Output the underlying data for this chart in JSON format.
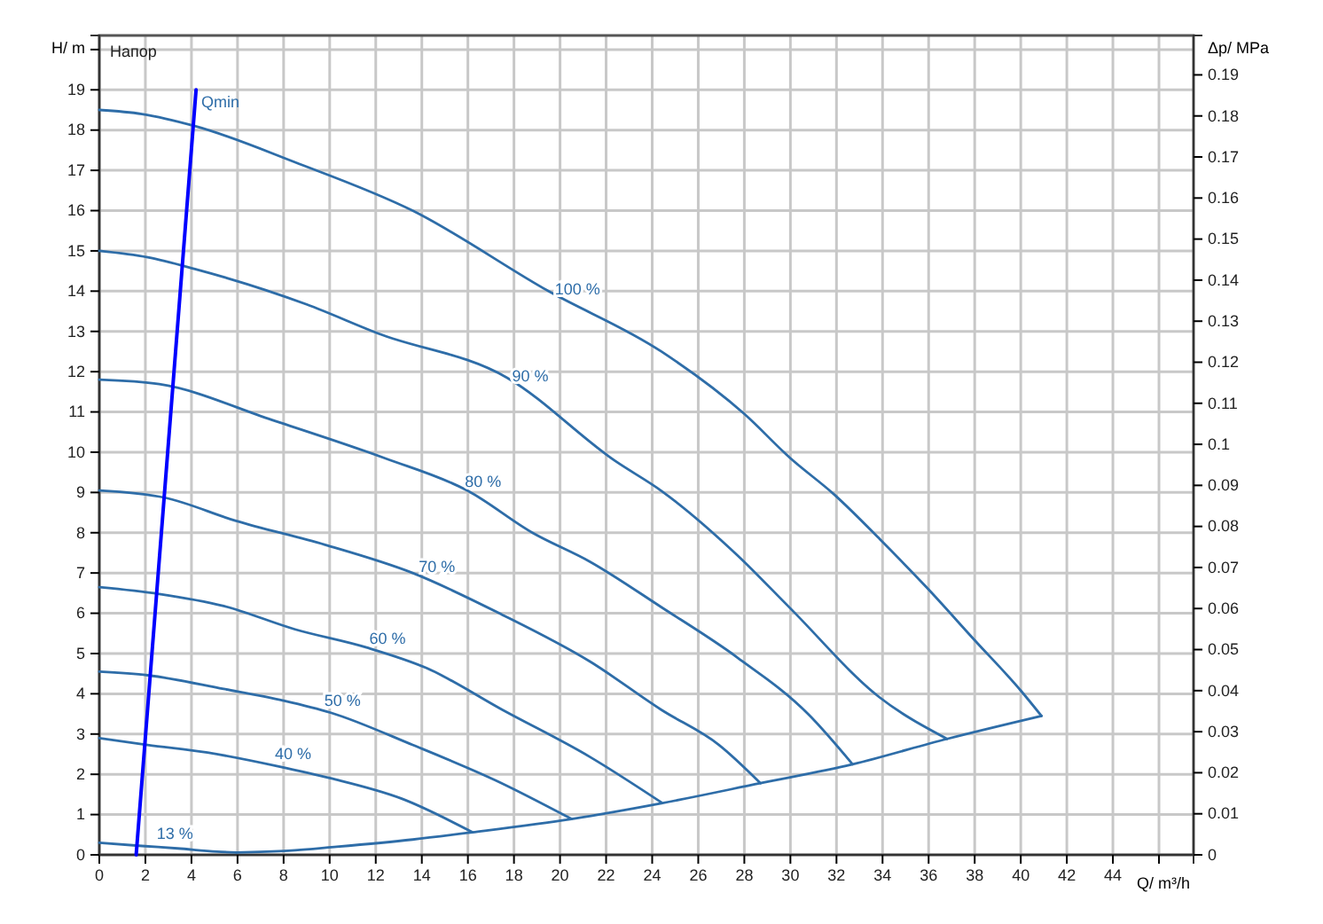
{
  "chart_data": {
    "type": "line",
    "title": "Напор",
    "xlabel": "Q/ m³/h",
    "ylabel": "H/ m",
    "y2label": "Δp/ MPa",
    "xlim": [
      0,
      47.5
    ],
    "ylim": [
      0,
      20.35
    ],
    "y2lim": [
      0,
      0.1996
    ],
    "xticks": [
      0,
      2,
      4,
      6,
      8,
      10,
      12,
      14,
      16,
      18,
      20,
      22,
      24,
      26,
      28,
      30,
      32,
      34,
      36,
      38,
      40,
      42,
      44,
      {
        "value": 46,
        "label": null
      }
    ],
    "yticks": [
      0,
      1,
      2,
      3,
      4,
      5,
      6,
      7,
      8,
      9,
      10,
      11,
      12,
      13,
      14,
      15,
      16,
      17,
      18,
      19,
      {
        "value": 20,
        "label": null
      }
    ],
    "y2ticks": [
      0,
      0.01,
      0.02,
      0.03,
      0.04,
      0.05,
      0.06,
      0.07,
      0.08,
      0.09,
      0.1,
      0.11,
      0.12,
      0.13,
      0.14,
      0.15,
      0.16,
      0.17,
      0.18,
      0.19
    ],
    "grid": true,
    "marker": "none",
    "line_style": "solid",
    "series": [
      {
        "name": "100 %",
        "color": "#2e6da8",
        "x": [
          0,
          1.85,
          4.15,
          8.5,
          13.6,
          19.5,
          24.4,
          28,
          30,
          31.9,
          33.9,
          35.9,
          38,
          40,
          40.9
        ],
        "values": [
          18.5,
          18.4,
          18.1,
          17.2,
          16.0,
          14.0,
          12.5,
          10.95,
          9.85,
          8.95,
          7.83,
          6.65,
          5.33,
          4.08,
          3.45
        ]
      },
      {
        "name": "90 %",
        "color": "#2e6da8",
        "x": [
          0,
          2.1,
          4.15,
          9,
          12.1,
          17.7,
          22.4,
          24.4,
          27.7,
          30,
          33.85,
          36.8
        ],
        "values": [
          15.0,
          14.84,
          14.55,
          13.67,
          12.95,
          11.85,
          9.78,
          9.04,
          7.44,
          6.12,
          3.92,
          2.88
        ]
      },
      {
        "name": "80 %",
        "color": "#2e6da8",
        "x": [
          0,
          2.6,
          7.5,
          12.4,
          16,
          18.8,
          21.3,
          24.4,
          27.7,
          30.8,
          32.7
        ],
        "values": [
          11.8,
          11.69,
          10.8,
          9.85,
          9.04,
          8.0,
          7.28,
          6.15,
          4.9,
          3.48,
          2.25
        ]
      },
      {
        "name": "70 %",
        "color": "#2e6da8",
        "x": [
          0,
          2.85,
          5.9,
          9.8,
          13.6,
          17.5,
          21.3,
          24.4,
          26.9,
          28.7
        ],
        "values": [
          9.05,
          8.87,
          8.3,
          7.7,
          7.0,
          5.96,
          4.8,
          3.6,
          2.73,
          1.78
        ]
      },
      {
        "name": "60 %",
        "color": "#2e6da8",
        "x": [
          0,
          2.6,
          5.4,
          8.5,
          11.6,
          14.2,
          17.5,
          21.3,
          24.4
        ],
        "values": [
          6.65,
          6.48,
          6.18,
          5.6,
          5.15,
          4.64,
          3.6,
          2.43,
          1.3
        ]
      },
      {
        "name": "50 %",
        "color": "#2e6da8",
        "x": [
          0,
          2.1,
          5.4,
          8,
          10.05,
          13.6,
          17.2,
          20.5
        ],
        "values": [
          4.55,
          4.46,
          4.12,
          3.83,
          3.53,
          2.73,
          1.85,
          0.89
        ]
      },
      {
        "name": "40 %",
        "color": "#2e6da8",
        "x": [
          0,
          2.1,
          4.7,
          7.75,
          10.05,
          13.1,
          16.2
        ],
        "values": [
          2.9,
          2.73,
          2.54,
          2.2,
          1.9,
          1.4,
          0.56
        ]
      },
      {
        "name": "13 %",
        "color": "#2e6da8",
        "x": [
          0,
          1.85,
          3.4,
          5.1,
          5.95
        ],
        "values": [
          0.3,
          0.22,
          0.16,
          0.08,
          0.06
        ]
      },
      {
        "color": "#2e6da8",
        "x": [
          5.95,
          8.2,
          10.3,
          13.6,
          16.2,
          20.5,
          24.4,
          28.7,
          32.7,
          36.8,
          40.9
        ],
        "values": [
          0.06,
          0.1,
          0.2,
          0.38,
          0.56,
          0.89,
          1.28,
          1.78,
          2.25,
          2.88,
          3.45
        ]
      },
      {
        "color": "#0000ff",
        "x": [
          1.6,
          4.2
        ],
        "values": [
          0,
          19.0
        ]
      }
    ],
    "annotations": [
      {
        "text": "Qmin",
        "x": 4.2,
        "y": 19.0
      }
    ]
  }
}
